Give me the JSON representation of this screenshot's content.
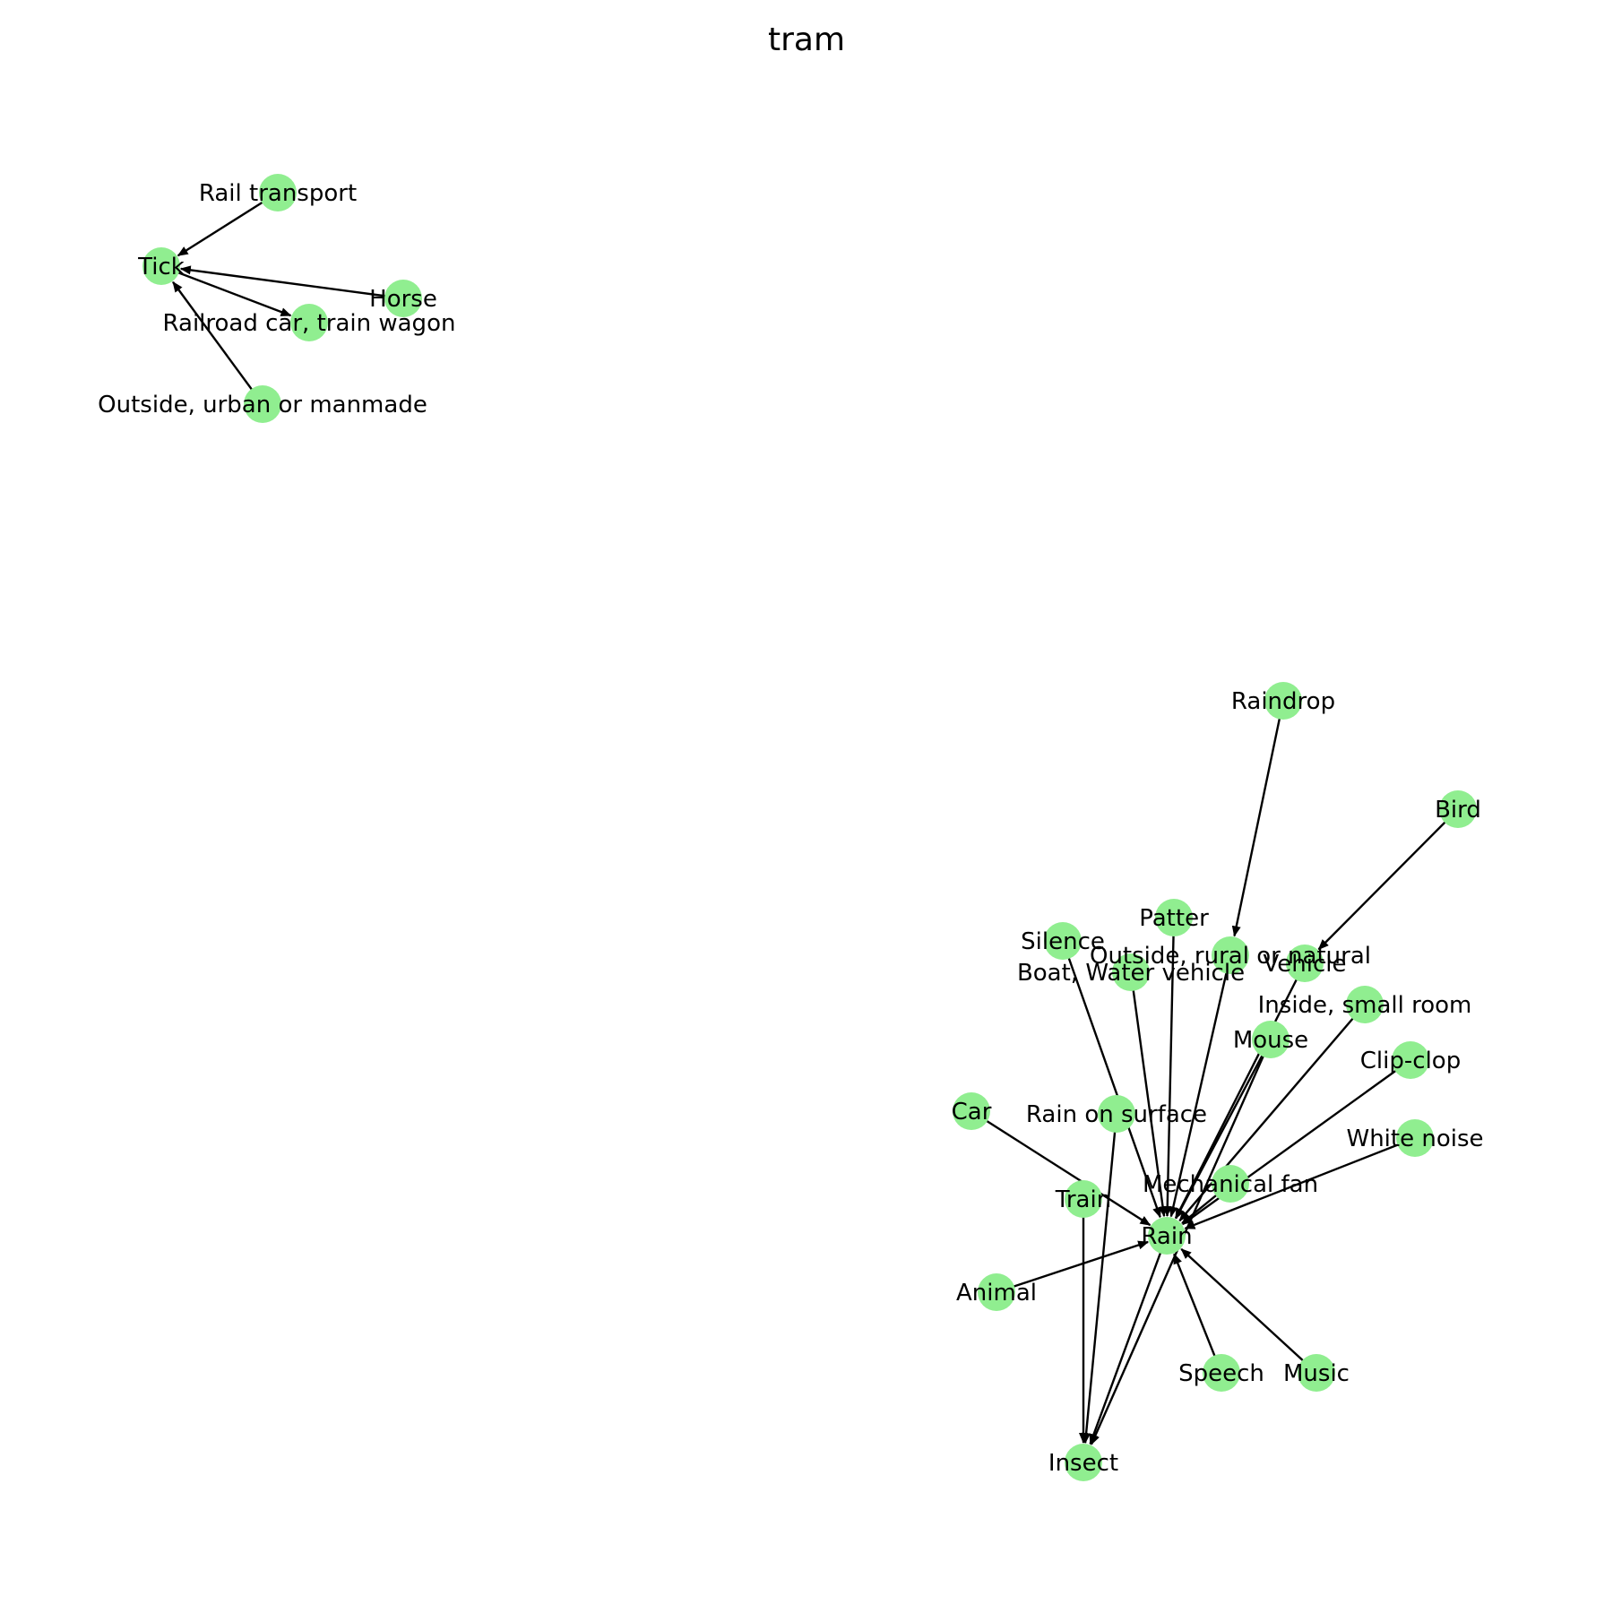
{
  "title": "tram",
  "colors": {
    "node": "#90ee90",
    "edge": "#000000",
    "background": "#ffffff"
  },
  "nodes": [
    {
      "id": "rail_transport",
      "label": "Rail transport"
    },
    {
      "id": "tick",
      "label": "Tick"
    },
    {
      "id": "horse",
      "label": "Horse"
    },
    {
      "id": "railroad_car",
      "label": "Railroad car, train wagon"
    },
    {
      "id": "outside_urban",
      "label": "Outside, urban or manmade"
    },
    {
      "id": "raindrop",
      "label": "Raindrop"
    },
    {
      "id": "bird",
      "label": "Bird"
    },
    {
      "id": "patter",
      "label": "Patter"
    },
    {
      "id": "silence",
      "label": "Silence"
    },
    {
      "id": "outside_rural",
      "label": "Outside, rural or natural"
    },
    {
      "id": "vehicle",
      "label": "Vehicle"
    },
    {
      "id": "boat",
      "label": "Boat, Water vehicle"
    },
    {
      "id": "inside_small_room",
      "label": "Inside, small room"
    },
    {
      "id": "mouse",
      "label": "Mouse"
    },
    {
      "id": "clip_clop",
      "label": "Clip-clop"
    },
    {
      "id": "car",
      "label": "Car"
    },
    {
      "id": "rain_on_surface",
      "label": "Rain on surface"
    },
    {
      "id": "white_noise",
      "label": "White noise"
    },
    {
      "id": "mechanical_fan",
      "label": "Mechanical fan"
    },
    {
      "id": "train",
      "label": "Train"
    },
    {
      "id": "rain",
      "label": "Rain"
    },
    {
      "id": "animal",
      "label": "Animal"
    },
    {
      "id": "speech",
      "label": "Speech"
    },
    {
      "id": "music",
      "label": "Music"
    },
    {
      "id": "insect",
      "label": "Insect"
    }
  ],
  "edges": [
    {
      "from": "rail_transport",
      "to": "tick"
    },
    {
      "from": "horse",
      "to": "tick"
    },
    {
      "from": "tick",
      "to": "railroad_car"
    },
    {
      "from": "outside_urban",
      "to": "tick"
    },
    {
      "from": "raindrop",
      "to": "outside_rural"
    },
    {
      "from": "bird",
      "to": "vehicle"
    },
    {
      "from": "silence",
      "to": "rain"
    },
    {
      "from": "boat",
      "to": "rain"
    },
    {
      "from": "patter",
      "to": "rain"
    },
    {
      "from": "outside_rural",
      "to": "rain"
    },
    {
      "from": "vehicle",
      "to": "rain"
    },
    {
      "from": "mouse",
      "to": "rain"
    },
    {
      "from": "inside_small_room",
      "to": "rain"
    },
    {
      "from": "clip_clop",
      "to": "rain"
    },
    {
      "from": "white_noise",
      "to": "rain"
    },
    {
      "from": "mechanical_fan",
      "to": "rain"
    },
    {
      "from": "car",
      "to": "rain"
    },
    {
      "from": "animal",
      "to": "rain"
    },
    {
      "from": "speech",
      "to": "rain"
    },
    {
      "from": "music",
      "to": "rain"
    },
    {
      "from": "rain",
      "to": "insect"
    },
    {
      "from": "train",
      "to": "insect"
    },
    {
      "from": "rain_on_surface",
      "to": "insect"
    },
    {
      "from": "mouse",
      "to": "insect"
    }
  ]
}
